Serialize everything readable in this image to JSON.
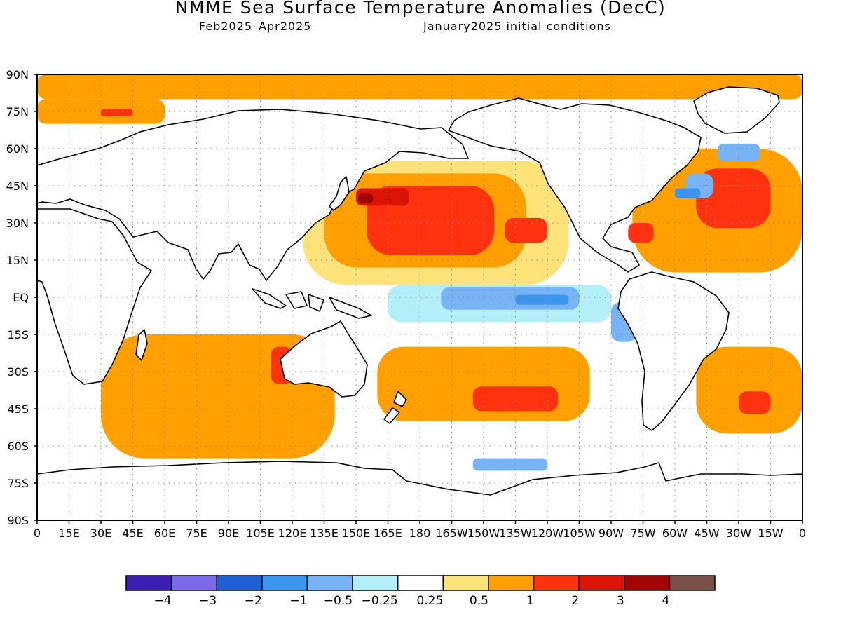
{
  "title": "NMME Sea Surface Temperature Anomalies (DecC)",
  "subtitle_left": "Feb2025–Apr2025",
  "subtitle_right": "January2025 initial conditions",
  "map": {
    "lon_range": [
      0,
      360
    ],
    "lat_range": [
      -90,
      90
    ],
    "grid": "dotted",
    "y_ticks": [
      {
        "lat": 90,
        "label": "90N"
      },
      {
        "lat": 75,
        "label": "75N"
      },
      {
        "lat": 60,
        "label": "60N"
      },
      {
        "lat": 45,
        "label": "45N"
      },
      {
        "lat": 30,
        "label": "30N"
      },
      {
        "lat": 15,
        "label": "15N"
      },
      {
        "lat": 0,
        "label": "EQ"
      },
      {
        "lat": -15,
        "label": "15S"
      },
      {
        "lat": -30,
        "label": "30S"
      },
      {
        "lat": -45,
        "label": "45S"
      },
      {
        "lat": -60,
        "label": "60S"
      },
      {
        "lat": -75,
        "label": "75S"
      },
      {
        "lat": -90,
        "label": "90S"
      }
    ],
    "x_ticks": [
      {
        "lon": 0,
        "label": "0"
      },
      {
        "lon": 15,
        "label": "15E"
      },
      {
        "lon": 30,
        "label": "30E"
      },
      {
        "lon": 45,
        "label": "45E"
      },
      {
        "lon": 60,
        "label": "60E"
      },
      {
        "lon": 75,
        "label": "75E"
      },
      {
        "lon": 90,
        "label": "90E"
      },
      {
        "lon": 105,
        "label": "105E"
      },
      {
        "lon": 120,
        "label": "120E"
      },
      {
        "lon": 135,
        "label": "135E"
      },
      {
        "lon": 150,
        "label": "150E"
      },
      {
        "lon": 165,
        "label": "165E"
      },
      {
        "lon": 180,
        "label": "180"
      },
      {
        "lon": 195,
        "label": "165W"
      },
      {
        "lon": 210,
        "label": "150W"
      },
      {
        "lon": 225,
        "label": "135W"
      },
      {
        "lon": 240,
        "label": "120W"
      },
      {
        "lon": 255,
        "label": "105W"
      },
      {
        "lon": 270,
        "label": "90W"
      },
      {
        "lon": 285,
        "label": "75W"
      },
      {
        "lon": 300,
        "label": "60W"
      },
      {
        "lon": 315,
        "label": "45W"
      },
      {
        "lon": 330,
        "label": "30W"
      },
      {
        "lon": 345,
        "label": "15W"
      },
      {
        "lon": 360,
        "label": "0"
      }
    ]
  },
  "colorbar": {
    "colors": [
      "#3d1fb0",
      "#7b6ae8",
      "#1f60d0",
      "#3c96f0",
      "#78b4f5",
      "#b4eef8",
      "#ffffff",
      "#ffe27a",
      "#ffa000",
      "#ff3210",
      "#dc1405",
      "#a00505",
      "#7a5046"
    ],
    "labels": [
      "−4",
      "−3",
      "−2",
      "−1",
      "−0.5",
      "−0.25",
      "0.25",
      "0.5",
      "1",
      "2",
      "3",
      "4"
    ]
  },
  "anomaly_regions": [
    {
      "level": 0.5,
      "lon": [
        0,
        360
      ],
      "lat": [
        80,
        90
      ]
    },
    {
      "level": 0.5,
      "lon": [
        0,
        60
      ],
      "lat": [
        70,
        80
      ]
    },
    {
      "level": 1,
      "lon": [
        30,
        45
      ],
      "lat": [
        73,
        76
      ]
    },
    {
      "level": 0.25,
      "lon": [
        125,
        250
      ],
      "lat": [
        5,
        55
      ]
    },
    {
      "level": 0.5,
      "lon": [
        135,
        230
      ],
      "lat": [
        12,
        50
      ]
    },
    {
      "level": 1,
      "lon": [
        155,
        215
      ],
      "lat": [
        17,
        45
      ]
    },
    {
      "level": 1,
      "lon": [
        220,
        240
      ],
      "lat": [
        22,
        32
      ]
    },
    {
      "level": 2,
      "lon": [
        150,
        175
      ],
      "lat": [
        37,
        44
      ]
    },
    {
      "level": 3,
      "lon": [
        151,
        158
      ],
      "lat": [
        38,
        42
      ]
    },
    {
      "level": 0.5,
      "lon": [
        280,
        360
      ],
      "lat": [
        10,
        60
      ]
    },
    {
      "level": 1,
      "lon": [
        310,
        345
      ],
      "lat": [
        28,
        52
      ]
    },
    {
      "level": 1,
      "lon": [
        278,
        290
      ],
      "lat": [
        22,
        30
      ]
    },
    {
      "level": -0.5,
      "lon": [
        305,
        318
      ],
      "lat": [
        40,
        50
      ]
    },
    {
      "level": -1,
      "lon": [
        300,
        312
      ],
      "lat": [
        40,
        44
      ]
    },
    {
      "level": -0.5,
      "lon": [
        320,
        340
      ],
      "lat": [
        55,
        62
      ]
    },
    {
      "level": -0.25,
      "lon": [
        165,
        270
      ],
      "lat": [
        -10,
        5
      ]
    },
    {
      "level": -0.5,
      "lon": [
        190,
        255
      ],
      "lat": [
        -5,
        4
      ]
    },
    {
      "level": -1,
      "lon": [
        225,
        250
      ],
      "lat": [
        -3,
        1
      ]
    },
    {
      "level": -0.5,
      "lon": [
        270,
        282
      ],
      "lat": [
        -18,
        -2
      ]
    },
    {
      "level": 0.5,
      "lon": [
        160,
        260
      ],
      "lat": [
        -50,
        -20
      ]
    },
    {
      "level": 1,
      "lon": [
        205,
        245
      ],
      "lat": [
        -46,
        -36
      ]
    },
    {
      "level": 0.5,
      "lon": [
        30,
        140
      ],
      "lat": [
        -65,
        -15
      ]
    },
    {
      "level": 1,
      "lon": [
        110,
        120
      ],
      "lat": [
        -35,
        -20
      ]
    },
    {
      "level": 0.5,
      "lon": [
        310,
        360
      ],
      "lat": [
        -55,
        -20
      ]
    },
    {
      "level": 1,
      "lon": [
        330,
        345
      ],
      "lat": [
        -47,
        -38
      ]
    },
    {
      "level": -0.5,
      "lon": [
        205,
        240
      ],
      "lat": [
        -70,
        -65
      ]
    }
  ]
}
